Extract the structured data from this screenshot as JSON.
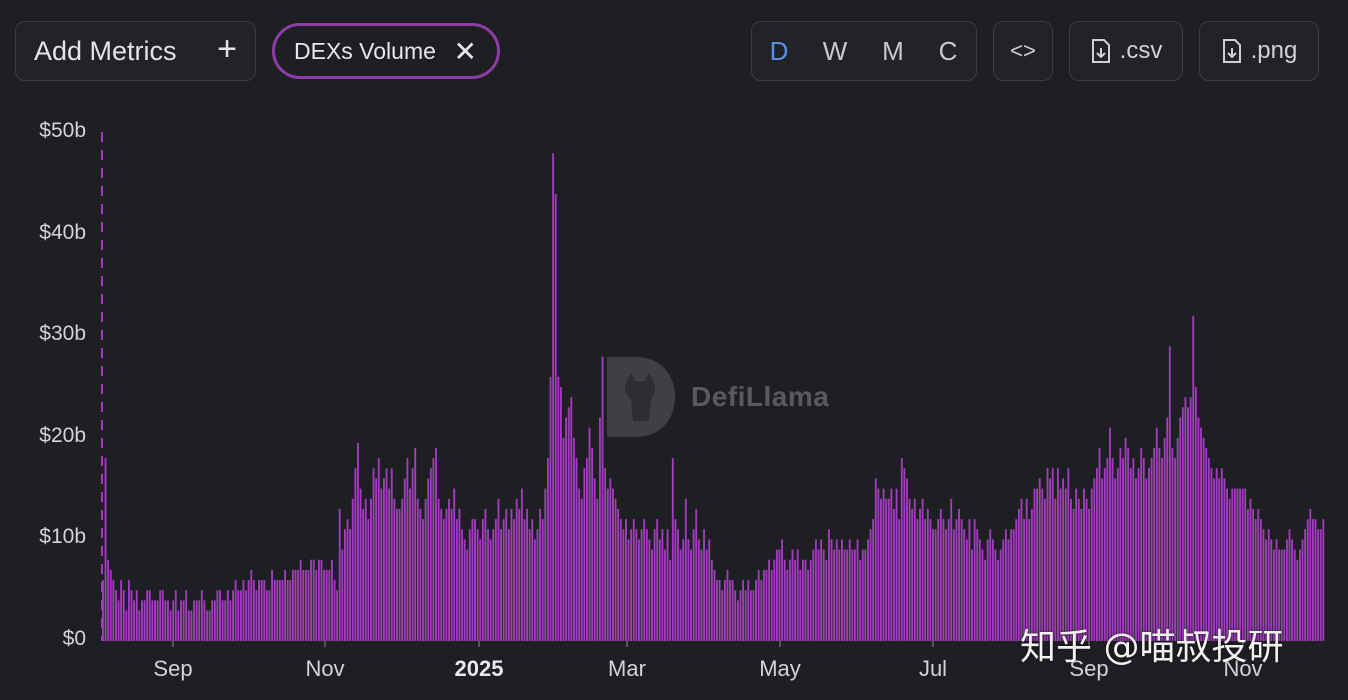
{
  "toolbar": {
    "add_metrics_label": "Add Metrics",
    "add_icon": "plus-icon",
    "metric_chip_label": "DEXs Volume",
    "remove_icon": "close-icon",
    "frequency_options": [
      "D",
      "W",
      "M",
      "C"
    ],
    "active_frequency": "D",
    "embed_label": "<>",
    "csv_label": ".csv",
    "png_label": ".png",
    "download_icon": "file-download-icon"
  },
  "colors": {
    "background": "#1e1f23",
    "bar": "#a13dbc",
    "active_frequency": "#5b8fe6",
    "chip_border": "#8e3da8"
  },
  "watermark": {
    "brand": "DefiLlama",
    "overlay_text": "知乎 @喵叔投研"
  },
  "chart_data": {
    "type": "bar",
    "series": [
      {
        "values": [
          6,
          18,
          8,
          7,
          6,
          5,
          4,
          6,
          5,
          3,
          6,
          5,
          4,
          5,
          3,
          4,
          4,
          5,
          5,
          4,
          4,
          4,
          5,
          5,
          4,
          4,
          3,
          4,
          5,
          3,
          4,
          4,
          5,
          3,
          3,
          4,
          4,
          4,
          5,
          4,
          3,
          3,
          4,
          4,
          5,
          5,
          4,
          4,
          5,
          4,
          5,
          6,
          5,
          5,
          6,
          5,
          6,
          7,
          6,
          5,
          6,
          6,
          6,
          5,
          5,
          7,
          6,
          6,
          6,
          6,
          7,
          6,
          6,
          7,
          7,
          7,
          8,
          7,
          7,
          7,
          8,
          8,
          7,
          8,
          8,
          7,
          7,
          7,
          8,
          6,
          5,
          13,
          9,
          11,
          12,
          11,
          14,
          17,
          19.5,
          15,
          13,
          14,
          12,
          14,
          17,
          16,
          18,
          15,
          16,
          17,
          15,
          17,
          14,
          13,
          13,
          14,
          16,
          18,
          15,
          17,
          19,
          14,
          13,
          12,
          14,
          16,
          17,
          18,
          19,
          14,
          13,
          12,
          13,
          14,
          13,
          15,
          12,
          13,
          11,
          10,
          9,
          11,
          12,
          12,
          11,
          10,
          12,
          13,
          11,
          10,
          11,
          12,
          14,
          11,
          12,
          13,
          11,
          13,
          12,
          14,
          13,
          15,
          12,
          13,
          11,
          12,
          10,
          11,
          13,
          12,
          15,
          18,
          26,
          48,
          44,
          26,
          25,
          20,
          22,
          23,
          24,
          20,
          18,
          15,
          14,
          17,
          18,
          21,
          19,
          16,
          14,
          22,
          28,
          17,
          15,
          16,
          15,
          14,
          13,
          12,
          11,
          12,
          10,
          11,
          12,
          11,
          10,
          11,
          12,
          11,
          10,
          9,
          11,
          12,
          10,
          11,
          9,
          11,
          8,
          18,
          12,
          11,
          9,
          10,
          14,
          10,
          9,
          11,
          13,
          10,
          9,
          11,
          9,
          10,
          8,
          7,
          6,
          6,
          5,
          6,
          7,
          6,
          6,
          5,
          4,
          5,
          6,
          5,
          6,
          5,
          5,
          6,
          7,
          6,
          7,
          7,
          8,
          7,
          8,
          9,
          9,
          10,
          8,
          7,
          8,
          9,
          8,
          9,
          7,
          8,
          8,
          7,
          8,
          9,
          10,
          9,
          10,
          9,
          8,
          11,
          10,
          9,
          10,
          9,
          10,
          9,
          9,
          10,
          9,
          9,
          10,
          8,
          9,
          9,
          10,
          11,
          12,
          16,
          15,
          14,
          15,
          14,
          14,
          15,
          13,
          15,
          12,
          18,
          17,
          16,
          14,
          13,
          14,
          12,
          13,
          14,
          12,
          13,
          12,
          11,
          11,
          12,
          13,
          12,
          11,
          12,
          14,
          11,
          12,
          13,
          12,
          11,
          10,
          12,
          9,
          12,
          11,
          10,
          9,
          8,
          10,
          11,
          10,
          9,
          8,
          9,
          10,
          11,
          10,
          11,
          11,
          12,
          13,
          14,
          12,
          14,
          12,
          13,
          15,
          15,
          16,
          15,
          14,
          17,
          16,
          17,
          14,
          17,
          15,
          16,
          15,
          17,
          14,
          13,
          15,
          14,
          13,
          15,
          14,
          13,
          15,
          16,
          17,
          19,
          16,
          17,
          18,
          21,
          18,
          16,
          17,
          19,
          18,
          20,
          19,
          17,
          18,
          16,
          17,
          19,
          18,
          16,
          17,
          18,
          19,
          21,
          19,
          18,
          20,
          22,
          29,
          19,
          18,
          20,
          22,
          23,
          24,
          23,
          24,
          32,
          25,
          22,
          21,
          20,
          19,
          18,
          17,
          16,
          17,
          16,
          17,
          16,
          15,
          14,
          15,
          15,
          15,
          15,
          15,
          15,
          13,
          14,
          13,
          12,
          13,
          12,
          11,
          10,
          11,
          10,
          9,
          10,
          9,
          9,
          9,
          10,
          11,
          10,
          9,
          8,
          9,
          10,
          11,
          12,
          13,
          12,
          12,
          11,
          11,
          12
        ]
      }
    ],
    "x_tick_labels": [
      {
        "label": "Sep",
        "bold": false
      },
      {
        "label": "Nov",
        "bold": false
      },
      {
        "label": "2025",
        "bold": true
      },
      {
        "label": "Mar",
        "bold": false
      },
      {
        "label": "May",
        "bold": false
      },
      {
        "label": "Jul",
        "bold": false
      },
      {
        "label": "Sep",
        "bold": false
      },
      {
        "label": "Nov",
        "bold": false
      }
    ],
    "y_tick_labels": [
      "$0",
      "$10b",
      "$20b",
      "$30b",
      "$40b",
      "$50b"
    ],
    "y_ticks": [
      0,
      10,
      20,
      30,
      40,
      50
    ],
    "ylim": [
      0,
      50
    ],
    "x_unit": "days",
    "y_unit": "USD billions",
    "grid": false,
    "legend": "none",
    "title": "",
    "xlabel": "",
    "ylabel": ""
  }
}
